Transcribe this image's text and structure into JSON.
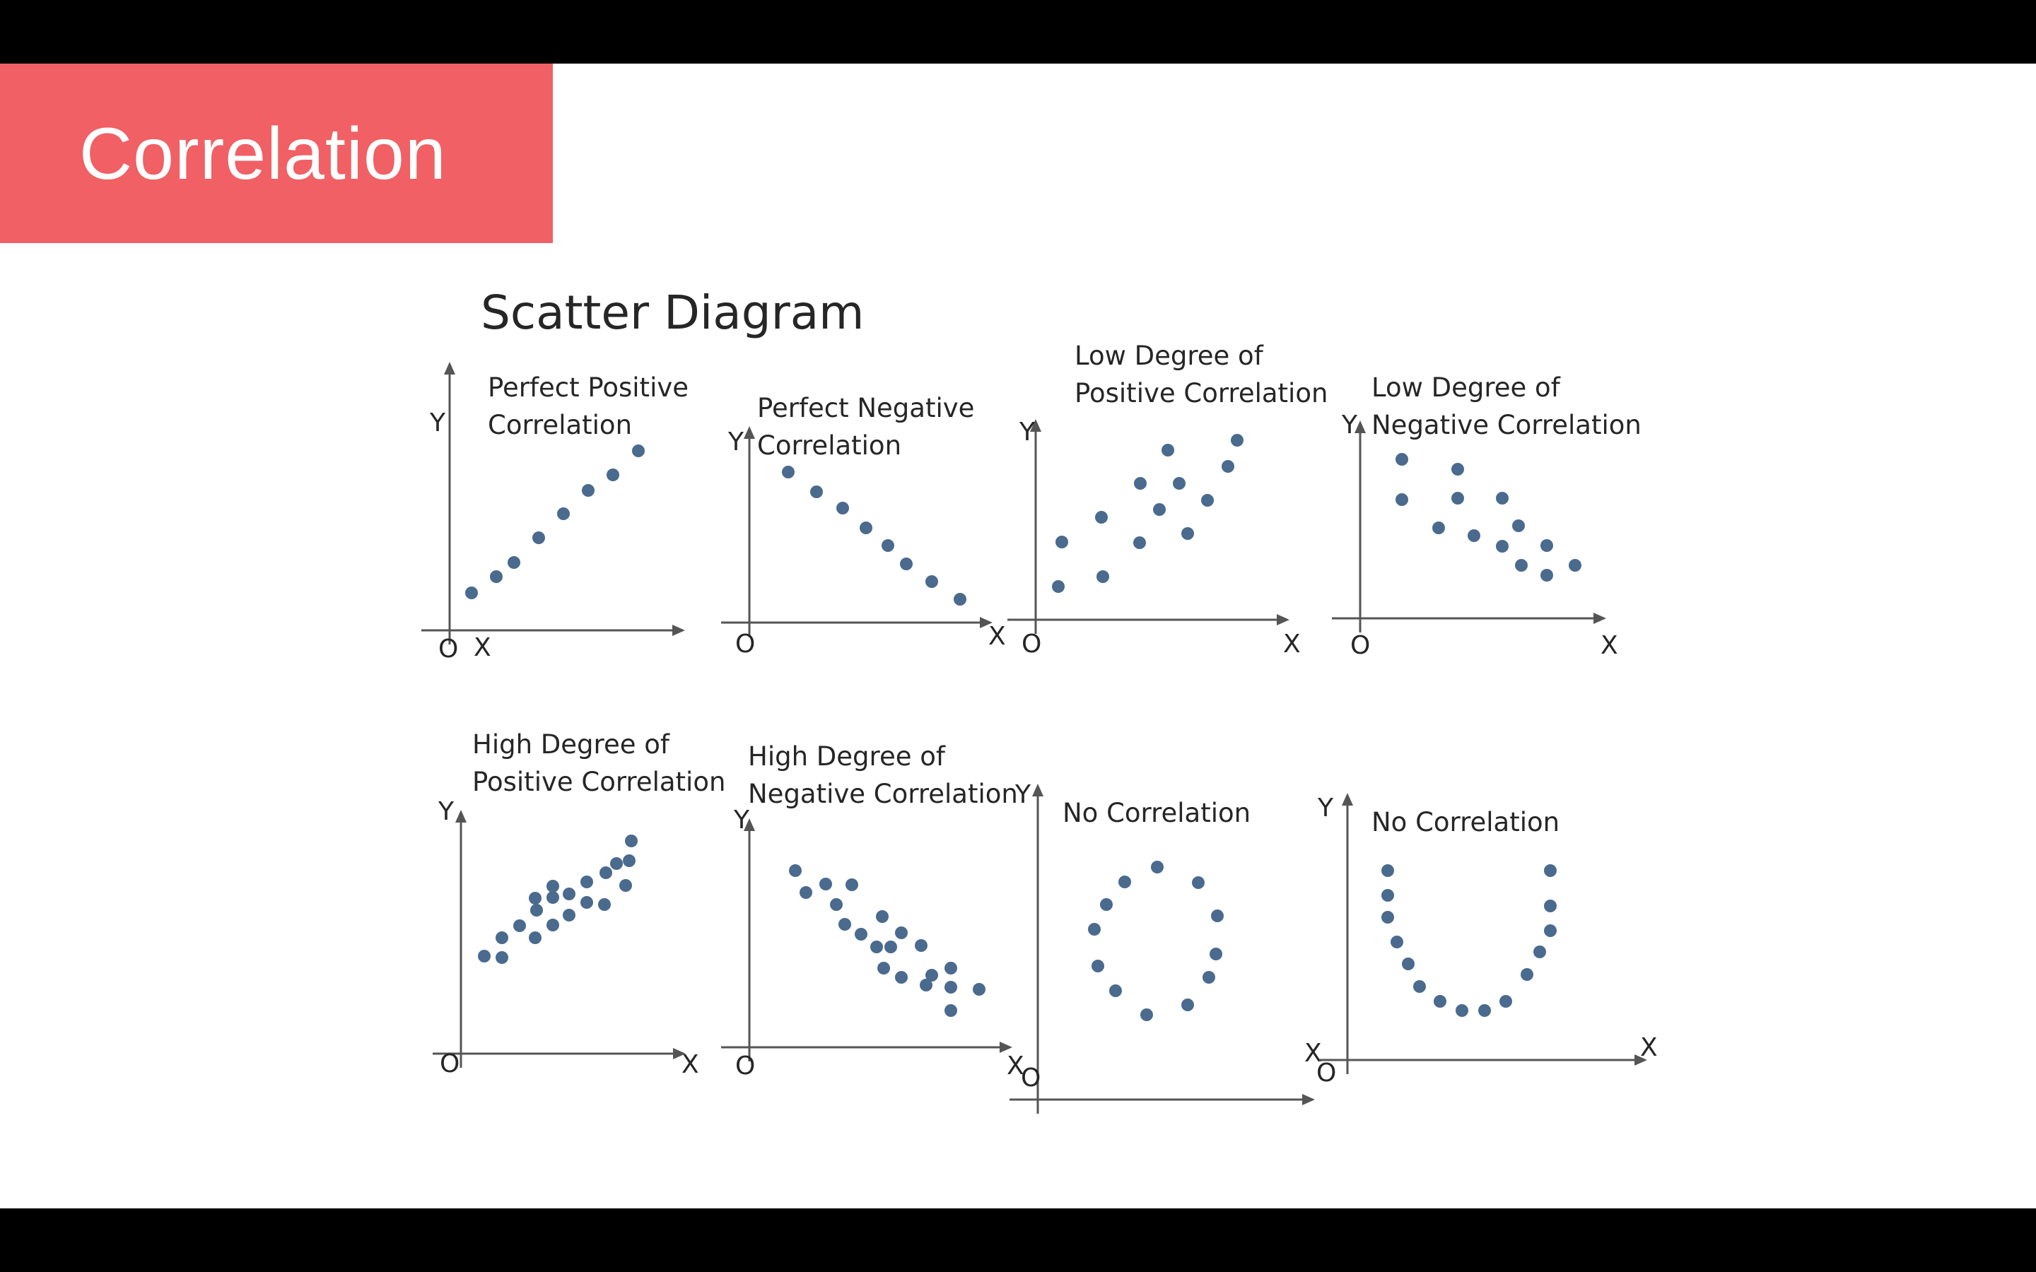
{
  "slide": {
    "title": "Correlation"
  },
  "colors": {
    "banner": "#f06064",
    "dot": "#4a6a8e",
    "axis": "#555555"
  },
  "diagram": {
    "title": "Scatter Diagram",
    "panels": [
      {
        "label": [
          "Perfect Positive",
          "Correlation"
        ],
        "axes": {
          "y": "Y",
          "x": "X",
          "origin": "O"
        }
      },
      {
        "label": [
          "Perfect Negative",
          "Correlation"
        ],
        "axes": {
          "y": "Y",
          "x": "X",
          "origin": "O"
        }
      },
      {
        "label": [
          "Low Degree of",
          "Positive Correlation"
        ],
        "axes": {
          "y": "Y",
          "x": "X",
          "origin": "O"
        }
      },
      {
        "label": [
          "Low Degree of",
          "Negative Correlation"
        ],
        "axes": {
          "y": "Y",
          "x": "X",
          "origin": "O"
        }
      },
      {
        "label": [
          "High Degree of",
          "Positive Correlation"
        ],
        "axes": {
          "y": "Y",
          "x": "X",
          "origin": "O"
        }
      },
      {
        "label": [
          "High Degree of",
          "Negative Correlation"
        ],
        "axes": {
          "y": "Y",
          "x": "X",
          "origin": "O"
        }
      },
      {
        "label": [
          "No Correlation"
        ],
        "axes": {
          "y": "Y",
          "x": "X",
          "origin": "O"
        }
      },
      {
        "label": [
          "No Correlation"
        ],
        "axes": {
          "y": "Y",
          "x": "X",
          "origin": "O"
        }
      }
    ]
  }
}
